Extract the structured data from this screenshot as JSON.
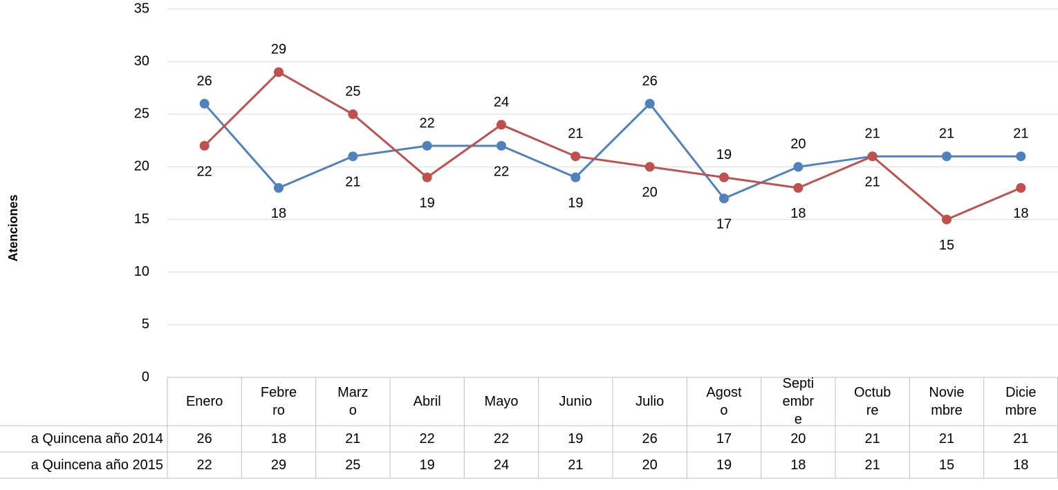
{
  "chart_data": {
    "type": "line",
    "y_label": "Atenciones",
    "categories": [
      "Enero",
      "Febrero",
      "Marzo",
      "Abril",
      "Mayo",
      "Junio",
      "Julio",
      "Agosto",
      "Septiembre",
      "Octubre",
      "Noviembre",
      "Diciembre"
    ],
    "series": [
      {
        "name": "a Quincena año 2014",
        "color": "#4f81bd",
        "values": [
          26,
          18,
          21,
          22,
          22,
          19,
          26,
          17,
          20,
          21,
          21,
          21
        ]
      },
      {
        "name": "a Quincena año 2015",
        "color": "#c0504d",
        "values": [
          22,
          29,
          25,
          19,
          24,
          21,
          20,
          19,
          18,
          21,
          15,
          18
        ]
      }
    ],
    "ylim": [
      0,
      35
    ],
    "yticks": [
      0,
      5,
      10,
      15,
      20,
      25,
      30,
      35
    ],
    "grid": true,
    "data_table": true
  }
}
